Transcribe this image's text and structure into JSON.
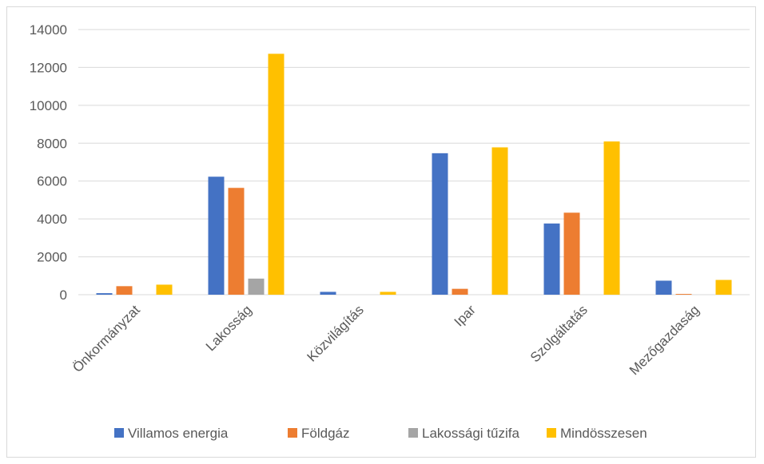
{
  "chart_data": {
    "type": "bar",
    "title": "",
    "xlabel": "",
    "ylabel": "",
    "ylim": [
      0,
      14000
    ],
    "yticks": [
      0,
      2000,
      4000,
      6000,
      8000,
      10000,
      12000,
      14000
    ],
    "grid": true,
    "legend_position": "bottom",
    "categories": [
      "Önkormányzat",
      "Lakosság",
      "Közvilágítás",
      "Ipar",
      "Szolgáltatás",
      "Mezőgazdaság"
    ],
    "series": [
      {
        "name": "Villamos energia",
        "color": "#4472c4",
        "values": [
          80,
          6230,
          150,
          7470,
          3760,
          740
        ]
      },
      {
        "name": "Földgáz",
        "color": "#ed7d31",
        "values": [
          450,
          5640,
          0,
          310,
          4330,
          40
        ]
      },
      {
        "name": "Lakossági tűzifa",
        "color": "#a5a5a5",
        "values": [
          0,
          850,
          0,
          0,
          0,
          0
        ]
      },
      {
        "name": "Mindösszesen",
        "color": "#ffc000",
        "values": [
          530,
          12720,
          150,
          7780,
          8090,
          780
        ]
      }
    ]
  }
}
